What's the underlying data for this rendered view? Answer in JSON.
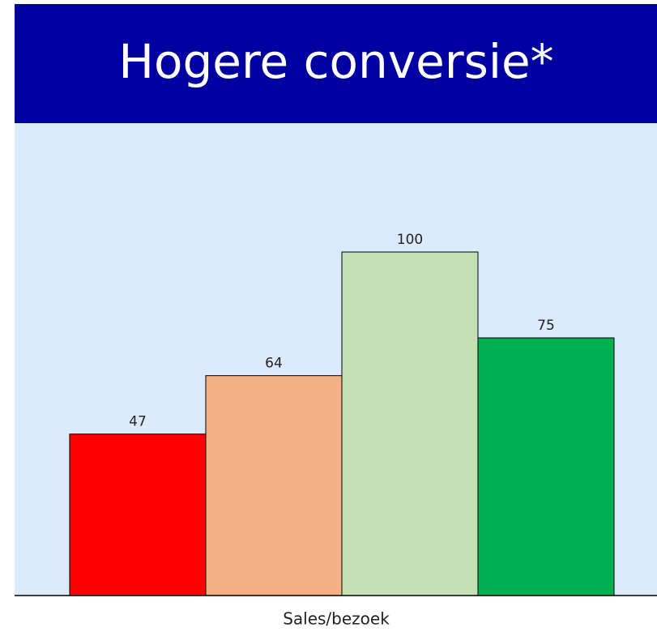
{
  "chart_data": {
    "type": "bar",
    "title": "Hogere conversie*",
    "x_label": "Sales/bezoek",
    "values": [
      47,
      64,
      100,
      75
    ],
    "colors": [
      "#ff0000",
      "#f4b183",
      "#c5e0b4",
      "#00b050"
    ],
    "ylim": [
      0,
      137.5
    ]
  }
}
